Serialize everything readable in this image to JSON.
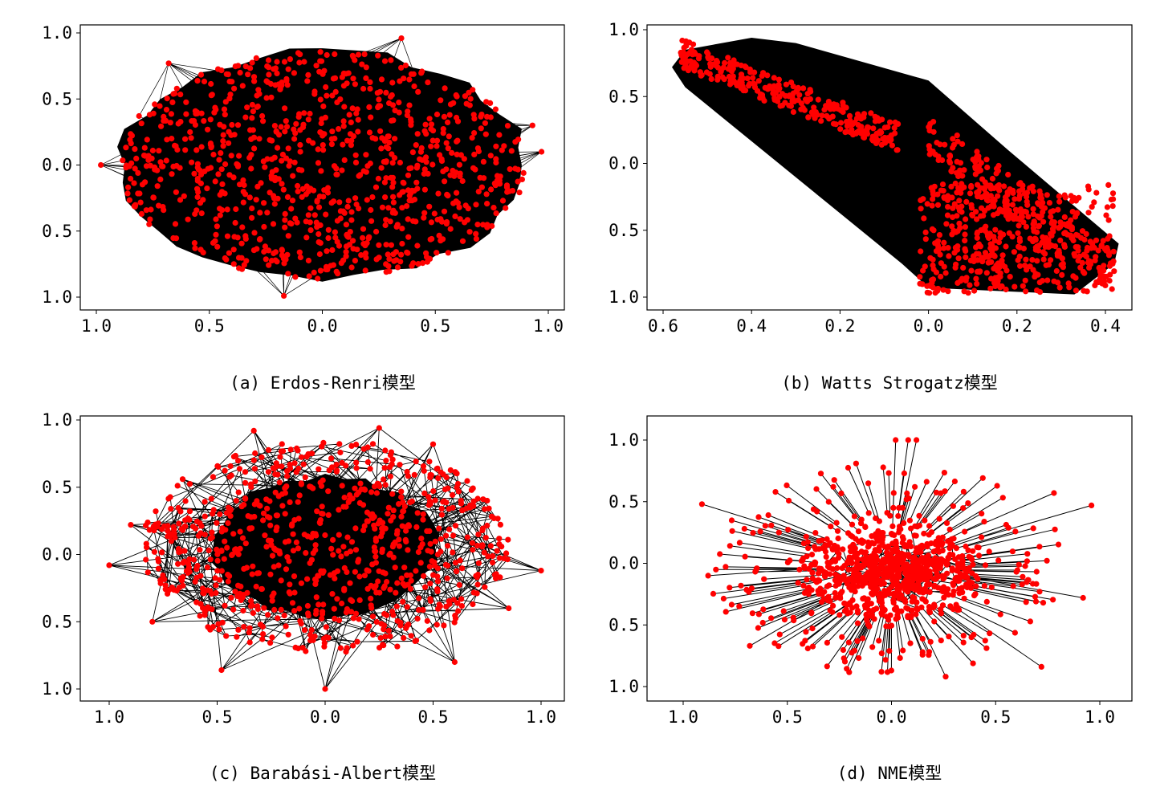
{
  "figure": {
    "edge_color": "#000000",
    "node_color": "#ff0000"
  },
  "chart_data": [
    {
      "type": "scatter",
      "subtype": "network-graph",
      "caption": "(a) Erdos-Renri模型",
      "xlim": [
        -1.0,
        1.0
      ],
      "ylim": [
        -1.0,
        1.0
      ],
      "xticks": [
        -1.0,
        -0.5,
        0.0,
        0.5,
        1.0
      ],
      "yticks": [
        -1.0,
        -0.5,
        0.0,
        0.5,
        1.0
      ],
      "xtick_labels": [
        "1.0",
        "0.5",
        "0.0",
        "0.5",
        "1.0"
      ],
      "ytick_labels": [
        "1.0",
        "0.5",
        "0.0",
        "0.5",
        "1.0"
      ],
      "grid": false,
      "node_extent": {
        "x": [
          -0.98,
          0.98
        ],
        "y": [
          -0.99,
          0.97
        ]
      }
    },
    {
      "type": "scatter",
      "subtype": "network-graph",
      "caption": "(b) Watts Strogatz模型",
      "xlim": [
        -0.6,
        0.49
      ],
      "ylim": [
        -1.0,
        1.0
      ],
      "xticks": [
        -0.6,
        -0.4,
        -0.2,
        0.0,
        0.2,
        0.4
      ],
      "yticks": [
        -1.0,
        -0.5,
        0.0,
        0.5,
        1.0
      ],
      "xtick_labels": [
        "0.6",
        "0.4",
        "0.2",
        "0.0",
        "0.2",
        "0.4"
      ],
      "ytick_labels": [
        "1.0",
        "0.5",
        "0.0",
        "0.5",
        "1.0"
      ],
      "grid": false,
      "node_extent": {
        "x": [
          -0.58,
          0.43
        ],
        "y": [
          -0.98,
          0.94
        ]
      }
    },
    {
      "type": "scatter",
      "subtype": "network-graph",
      "caption": "(c) Barabási-Albert模型",
      "xlim": [
        -1.0,
        1.0
      ],
      "ylim": [
        -1.0,
        1.0
      ],
      "xticks": [
        -1.0,
        -0.5,
        0.0,
        0.5,
        1.0
      ],
      "yticks": [
        -1.0,
        -0.5,
        0.0,
        0.5,
        1.0
      ],
      "xtick_labels": [
        "1.0",
        "0.5",
        "0.0",
        "0.5",
        "1.0"
      ],
      "ytick_labels": [
        "1.0",
        "0.5",
        "0.0",
        "0.5",
        "1.0"
      ],
      "grid": false,
      "node_extent": {
        "x": [
          -1.0,
          1.0
        ],
        "y": [
          -1.0,
          0.95
        ]
      }
    },
    {
      "type": "scatter",
      "subtype": "network-graph",
      "caption": "(d) NME模型",
      "xlim": [
        -1.0,
        1.0
      ],
      "ylim": [
        -1.0,
        1.0
      ],
      "xticks": [
        -1.0,
        -0.5,
        0.0,
        0.5,
        1.0
      ],
      "yticks": [
        -1.0,
        -0.5,
        0.0,
        0.5,
        1.0
      ],
      "xtick_labels": [
        "1.0",
        "0.5",
        "0.0",
        "0.5",
        "1.0"
      ],
      "ytick_labels": [
        "1.0",
        "0.5",
        "0.0",
        "0.5",
        "1.0"
      ],
      "grid": false,
      "node_extent": {
        "x": [
          -0.91,
          0.96
        ],
        "y": [
          -0.93,
          1.0
        ]
      }
    }
  ]
}
